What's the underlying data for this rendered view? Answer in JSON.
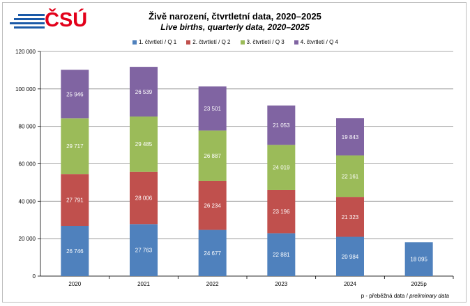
{
  "logo": {
    "text": "ČSÚ"
  },
  "chart_data": {
    "type": "bar",
    "stacked": true,
    "title": "Živě narození, čtvrtletní data, 2020–2025",
    "subtitle": "Live births, quarterly data, 2020–2025",
    "categories": [
      "2020",
      "2021",
      "2022",
      "2023",
      "2024",
      "2025p"
    ],
    "series": [
      {
        "name": "1. čtvrtletí / Q 1",
        "color": "#4f81bd",
        "values": [
          26746,
          27763,
          24677,
          22881,
          20984,
          18095
        ],
        "labels": [
          "26 746",
          "27 763",
          "24 677",
          "22 881",
          "20 984",
          "18 095"
        ]
      },
      {
        "name": "2. čtvrtletí / Q 2",
        "color": "#c0504d",
        "values": [
          27791,
          28006,
          26234,
          23196,
          21323,
          null
        ],
        "labels": [
          "27 791",
          "28 006",
          "26 234",
          "23 196",
          "21 323",
          ""
        ]
      },
      {
        "name": "3. čtvrtletí / Q 3",
        "color": "#9bbb59",
        "values": [
          29717,
          29485,
          26887,
          24019,
          22161,
          null
        ],
        "labels": [
          "29 717",
          "29 485",
          "26 887",
          "24 019",
          "22 161",
          ""
        ]
      },
      {
        "name": "4. čtvrtletí / Q 4",
        "color": "#8064a2",
        "values": [
          25946,
          26539,
          23501,
          21053,
          19843,
          null
        ],
        "labels": [
          "25 946",
          "26 539",
          "23 501",
          "21 053",
          "19 843",
          ""
        ]
      }
    ],
    "ylim": [
      0,
      120000
    ],
    "yticks": [
      0,
      20000,
      40000,
      60000,
      80000,
      100000,
      120000
    ],
    "ytick_labels": [
      "0",
      "20 000",
      "40 000",
      "60 000",
      "80 000",
      "100 000",
      "120 000"
    ],
    "grid": true,
    "legend_position": "top"
  },
  "footnote": {
    "prefix": "p - přeběžná data / ",
    "italic": "preliminary data"
  }
}
